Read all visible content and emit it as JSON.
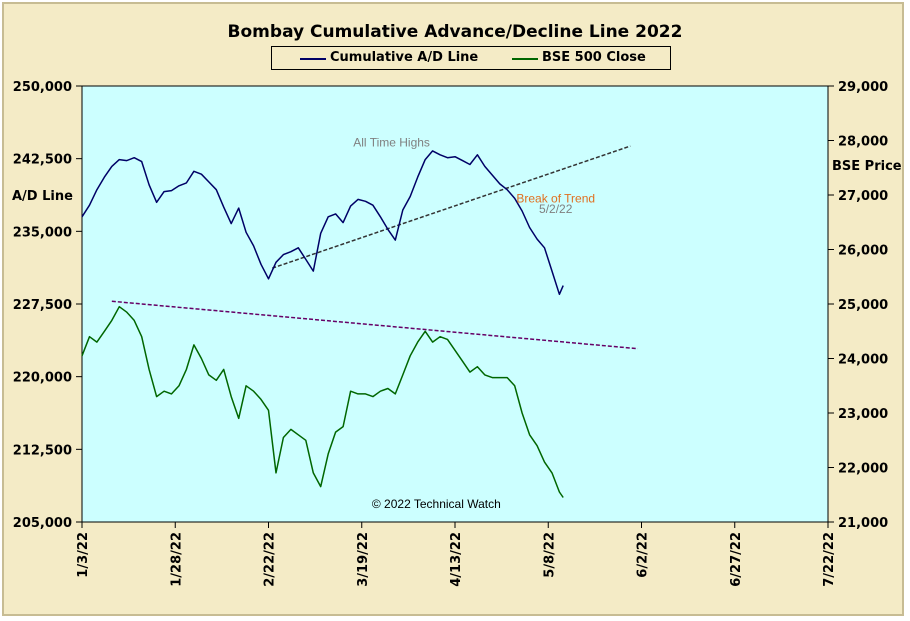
{
  "chart_data": {
    "type": "line",
    "title": "Bombay Cumulative Advance/Decline Line 2022",
    "ylabel_left": "A/D Line",
    "ylabel_right": "BSE Price",
    "y_left_range": [
      205000,
      250000
    ],
    "y_right_range": [
      21000,
      29000
    ],
    "y_left_ticks": [
      "250,000",
      "242,500",
      "235,000",
      "227,500",
      "220,000",
      "212,500",
      "205,000"
    ],
    "y_right_ticks": [
      "29,000",
      "28,000",
      "27,000",
      "26,000",
      "25,000",
      "24,000",
      "23,000",
      "22,000",
      "21,000"
    ],
    "x_ticks": [
      "1/3/22",
      "1/28/22",
      "2/22/22",
      "3/19/22",
      "4/13/22",
      "5/8/22",
      "6/2/22",
      "6/27/22",
      "7/22/22"
    ],
    "x_range": [
      "2022-01-03",
      "2022-07-22"
    ],
    "grid": false,
    "legend_position": "top-center",
    "series": [
      {
        "name": "Cumulative A/D Line",
        "axis": "left",
        "color": "#000066",
        "points": [
          [
            "2022-01-03",
            236500
          ],
          [
            "2022-01-05",
            237700
          ],
          [
            "2022-01-07",
            239300
          ],
          [
            "2022-01-09",
            240600
          ],
          [
            "2022-01-11",
            241700
          ],
          [
            "2022-01-13",
            242400
          ],
          [
            "2022-01-15",
            242300
          ],
          [
            "2022-01-17",
            242600
          ],
          [
            "2022-01-19",
            242200
          ],
          [
            "2022-01-21",
            239800
          ],
          [
            "2022-01-23",
            238000
          ],
          [
            "2022-01-25",
            239100
          ],
          [
            "2022-01-27",
            239200
          ],
          [
            "2022-01-29",
            239700
          ],
          [
            "2022-01-31",
            240000
          ],
          [
            "2022-02-02",
            241200
          ],
          [
            "2022-02-04",
            240900
          ],
          [
            "2022-02-06",
            240100
          ],
          [
            "2022-02-08",
            239300
          ],
          [
            "2022-02-10",
            237500
          ],
          [
            "2022-02-12",
            235800
          ],
          [
            "2022-02-14",
            237400
          ],
          [
            "2022-02-16",
            234900
          ],
          [
            "2022-02-18",
            233500
          ],
          [
            "2022-02-20",
            231600
          ],
          [
            "2022-02-22",
            230100
          ],
          [
            "2022-02-24",
            231800
          ],
          [
            "2022-02-26",
            232600
          ],
          [
            "2022-02-28",
            232900
          ],
          [
            "2022-03-02",
            233300
          ],
          [
            "2022-03-04",
            232100
          ],
          [
            "2022-03-06",
            230900
          ],
          [
            "2022-03-08",
            234800
          ],
          [
            "2022-03-10",
            236500
          ],
          [
            "2022-03-12",
            236800
          ],
          [
            "2022-03-14",
            235900
          ],
          [
            "2022-03-16",
            237600
          ],
          [
            "2022-03-18",
            238300
          ],
          [
            "2022-03-20",
            238100
          ],
          [
            "2022-03-22",
            237700
          ],
          [
            "2022-03-24",
            236500
          ],
          [
            "2022-03-26",
            235200
          ],
          [
            "2022-03-28",
            234100
          ],
          [
            "2022-03-30",
            237200
          ],
          [
            "2022-04-01",
            238600
          ],
          [
            "2022-04-03",
            240600
          ],
          [
            "2022-04-05",
            242400
          ],
          [
            "2022-04-07",
            243300
          ],
          [
            "2022-04-09",
            242900
          ],
          [
            "2022-04-11",
            242600
          ],
          [
            "2022-04-13",
            242700
          ],
          [
            "2022-04-15",
            242300
          ],
          [
            "2022-04-17",
            241900
          ],
          [
            "2022-04-19",
            242900
          ],
          [
            "2022-04-21",
            241700
          ],
          [
            "2022-04-23",
            240800
          ],
          [
            "2022-04-25",
            239900
          ],
          [
            "2022-04-27",
            239300
          ],
          [
            "2022-04-29",
            238400
          ],
          [
            "2022-05-01",
            237100
          ],
          [
            "2022-05-03",
            235400
          ],
          [
            "2022-05-05",
            234200
          ],
          [
            "2022-05-07",
            233300
          ],
          [
            "2022-05-09",
            230900
          ],
          [
            "2022-05-11",
            228500
          ],
          [
            "2022-05-12",
            229400
          ]
        ]
      },
      {
        "name": "BSE 500 Close",
        "axis": "right",
        "color": "#006600",
        "points": [
          [
            "2022-01-03",
            24050
          ],
          [
            "2022-01-05",
            24400
          ],
          [
            "2022-01-07",
            24300
          ],
          [
            "2022-01-09",
            24500
          ],
          [
            "2022-01-11",
            24700
          ],
          [
            "2022-01-13",
            24950
          ],
          [
            "2022-01-15",
            24850
          ],
          [
            "2022-01-17",
            24700
          ],
          [
            "2022-01-19",
            24400
          ],
          [
            "2022-01-21",
            23800
          ],
          [
            "2022-01-23",
            23300
          ],
          [
            "2022-01-25",
            23400
          ],
          [
            "2022-01-27",
            23350
          ],
          [
            "2022-01-29",
            23500
          ],
          [
            "2022-01-31",
            23800
          ],
          [
            "2022-02-02",
            24250
          ],
          [
            "2022-02-04",
            24000
          ],
          [
            "2022-02-06",
            23700
          ],
          [
            "2022-02-08",
            23600
          ],
          [
            "2022-02-10",
            23800
          ],
          [
            "2022-02-12",
            23300
          ],
          [
            "2022-02-14",
            22900
          ],
          [
            "2022-02-16",
            23500
          ],
          [
            "2022-02-18",
            23400
          ],
          [
            "2022-02-20",
            23250
          ],
          [
            "2022-02-22",
            23050
          ],
          [
            "2022-02-24",
            21900
          ],
          [
            "2022-02-26",
            22550
          ],
          [
            "2022-02-28",
            22700
          ],
          [
            "2022-03-02",
            22600
          ],
          [
            "2022-03-04",
            22500
          ],
          [
            "2022-03-06",
            21900
          ],
          [
            "2022-03-08",
            21650
          ],
          [
            "2022-03-10",
            22250
          ],
          [
            "2022-03-12",
            22650
          ],
          [
            "2022-03-14",
            22750
          ],
          [
            "2022-03-16",
            23400
          ],
          [
            "2022-03-18",
            23350
          ],
          [
            "2022-03-20",
            23350
          ],
          [
            "2022-03-22",
            23300
          ],
          [
            "2022-03-24",
            23400
          ],
          [
            "2022-03-26",
            23450
          ],
          [
            "2022-03-28",
            23350
          ],
          [
            "2022-03-30",
            23700
          ],
          [
            "2022-04-01",
            24050
          ],
          [
            "2022-04-03",
            24300
          ],
          [
            "2022-04-05",
            24500
          ],
          [
            "2022-04-07",
            24300
          ],
          [
            "2022-04-09",
            24400
          ],
          [
            "2022-04-11",
            24350
          ],
          [
            "2022-04-13",
            24150
          ],
          [
            "2022-04-15",
            23950
          ],
          [
            "2022-04-17",
            23750
          ],
          [
            "2022-04-19",
            23850
          ],
          [
            "2022-04-21",
            23700
          ],
          [
            "2022-04-23",
            23650
          ],
          [
            "2022-04-25",
            23650
          ],
          [
            "2022-04-27",
            23650
          ],
          [
            "2022-04-29",
            23500
          ],
          [
            "2022-05-01",
            23000
          ],
          [
            "2022-05-03",
            22600
          ],
          [
            "2022-05-05",
            22400
          ],
          [
            "2022-05-07",
            22100
          ],
          [
            "2022-05-09",
            21900
          ],
          [
            "2022-05-11",
            21550
          ],
          [
            "2022-05-12",
            21450
          ]
        ]
      }
    ],
    "trendlines": [
      {
        "axis": "left",
        "color": "#333333",
        "style": "dashed",
        "from": [
          "2022-02-23",
          231200
        ],
        "to": [
          "2022-05-30",
          243800
        ]
      },
      {
        "axis": "right",
        "color": "#660066",
        "style": "dashed",
        "from": [
          "2022-01-11",
          25050
        ],
        "to": [
          "2022-06-01",
          24180
        ]
      }
    ],
    "annotations": [
      {
        "text": "All Time Highs",
        "color": "#808080",
        "x": "2022-03-27",
        "y": 243750,
        "axis": "left"
      },
      {
        "text": "Break of Trend",
        "color": "#e07020",
        "x": "2022-05-10",
        "y": 238000,
        "axis": "left"
      },
      {
        "text": "5/2/22",
        "color": "#808080",
        "x": "2022-05-10",
        "y": 236900,
        "axis": "left"
      },
      {
        "text": "© 2022 Technical Watch",
        "color": "#000000",
        "x": "2022-04-08",
        "y": 206450,
        "axis": "left"
      }
    ]
  }
}
